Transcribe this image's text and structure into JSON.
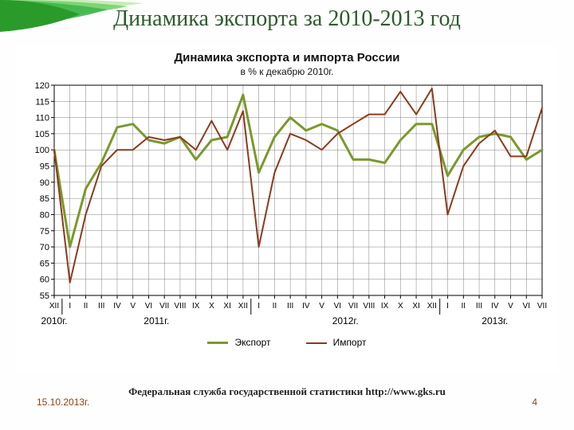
{
  "slide": {
    "title": "Динамика экспорта за 2010-2013 год",
    "date": "15.10.2013г.",
    "source": "Федеральная служба государственной статистики http://www.gks.ru",
    "page_number": "4",
    "corner_colors": [
      "#2a9b2a",
      "#3fb64a",
      "#6ed06a",
      "#b8e8a0"
    ]
  },
  "chart": {
    "type": "line",
    "title": "Динамика экспорта и импорта России",
    "subtitle": "в % к декабрю 2010г.",
    "background_color": "#ffffff",
    "plot_background": "#ffffff",
    "grid_color": "#808080",
    "grid_width": 0.5,
    "axis_color": "#000000",
    "label_fontsize": 11,
    "ylim": [
      55,
      120
    ],
    "ytick_step": 5,
    "yticks": [
      55,
      60,
      65,
      70,
      75,
      80,
      85,
      90,
      95,
      100,
      105,
      110,
      115,
      120
    ],
    "x_labels": [
      "XII",
      "I",
      "II",
      "III",
      "IV",
      "V",
      "VI",
      "VII",
      "VIII",
      "IX",
      "X",
      "XI",
      "XII",
      "I",
      "II",
      "III",
      "IV",
      "V",
      "VI",
      "VII",
      "VIII",
      "IX",
      "X",
      "XI",
      "XII",
      "I",
      "II",
      "III",
      "IV",
      "V",
      "VI",
      "VII"
    ],
    "year_groups": [
      {
        "label": "2010г.",
        "span": [
          0,
          0
        ]
      },
      {
        "label": "2011г.",
        "span": [
          1,
          12
        ]
      },
      {
        "label": "2012г.",
        "span": [
          13,
          24
        ]
      },
      {
        "label": "2013г.",
        "span": [
          25,
          31
        ]
      }
    ],
    "series": [
      {
        "name": "Экспорт",
        "color": "#7a992e",
        "line_width": 3,
        "values": [
          100,
          70,
          88,
          96,
          107,
          108,
          103,
          102,
          104,
          97,
          103,
          104,
          117,
          93,
          104,
          110,
          106,
          108,
          106,
          97,
          97,
          96,
          103,
          108,
          108,
          92,
          100,
          104,
          105,
          104,
          97,
          100
        ]
      },
      {
        "name": "Импорт",
        "color": "#8b3a1e",
        "line_width": 2,
        "values": [
          100,
          59,
          80,
          95,
          100,
          100,
          104,
          103,
          104,
          100,
          109,
          100,
          112,
          70,
          93,
          105,
          103,
          100,
          105,
          108,
          111,
          111,
          118,
          111,
          119,
          80,
          95,
          102,
          106,
          98,
          98,
          113
        ]
      }
    ],
    "legend": {
      "position": "bottom"
    }
  }
}
